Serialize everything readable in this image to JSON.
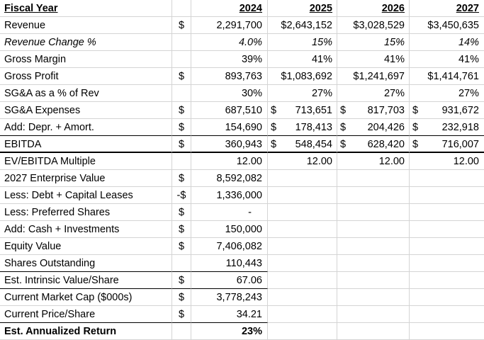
{
  "header": {
    "label": "Fiscal Year",
    "years": [
      "2024",
      "2025",
      "2026",
      "2027"
    ]
  },
  "rows": [
    {
      "label": "Revenue",
      "cur": "$",
      "v2024": "2,291,700",
      "v2025": "$2,643,152",
      "v2026": "$3,028,529",
      "v2027": "$3,450,635"
    },
    {
      "label": "Revenue Change %",
      "cur": "",
      "v2024": "4.0%",
      "v2025": "15%",
      "v2026": "15%",
      "v2027": "14%"
    },
    {
      "label": "Gross Margin",
      "cur": "",
      "v2024": "39%",
      "v2025": "41%",
      "v2026": "41%",
      "v2027": "41%"
    },
    {
      "label": "Gross Profit",
      "cur": "$",
      "v2024": "893,763",
      "v2025": "$1,083,692",
      "v2026": "$1,241,697",
      "v2027": "$1,414,761"
    },
    {
      "label": "SG&A as a % of Rev",
      "cur": "",
      "v2024": "30%",
      "v2025": "27%",
      "v2026": "27%",
      "v2027": "27%"
    },
    {
      "label": "SG&A Expenses",
      "cur": "$",
      "v2024": "687,510",
      "s2025": "$",
      "v2025": "713,651",
      "s2026": "$",
      "v2026": "817,703",
      "s2027": "$",
      "v2027": "931,672"
    },
    {
      "label": "Add: Depr. + Amort.",
      "cur": "$",
      "v2024": "154,690",
      "s2025": "$",
      "v2025": "178,413",
      "s2026": "$",
      "v2026": "204,426",
      "s2027": "$",
      "v2027": "232,918"
    },
    {
      "label": "EBITDA",
      "cur": "$",
      "v2024": "360,943",
      "s2025": "$",
      "v2025": "548,454",
      "s2026": "$",
      "v2026": "628,420",
      "s2027": "$",
      "v2027": "716,007"
    },
    {
      "label": "EV/EBITDA Multiple",
      "cur": "",
      "v2024": "12.00",
      "v2025": "12.00",
      "v2026": "12.00",
      "v2027": "12.00"
    },
    {
      "label": "2027 Enterprise Value",
      "cur": "$",
      "v2024": "8,592,082"
    },
    {
      "label": "Less: Debt + Capital Leases",
      "cur": "-$",
      "v2024": "1,336,000"
    },
    {
      "label": "Less: Preferred Shares",
      "cur": "$",
      "v2024": "-"
    },
    {
      "label": "Add: Cash + Investments",
      "cur": "$",
      "v2024": "150,000"
    },
    {
      "label": "Equity Value",
      "cur": "$",
      "v2024": "7,406,082"
    },
    {
      "label": "Shares Outstanding",
      "cur": "",
      "v2024": "110,443"
    },
    {
      "label": "Est. Intrinsic Value/Share",
      "cur": "$",
      "v2024": "67.06"
    },
    {
      "label": "Current Market Cap ($000s)",
      "cur": "$",
      "v2024": "3,778,243"
    },
    {
      "label": "Current Price/Share",
      "cur": "$",
      "v2024": "34.21"
    },
    {
      "label": "Est. Annualized Return",
      "cur": "",
      "v2024": "23%"
    }
  ]
}
